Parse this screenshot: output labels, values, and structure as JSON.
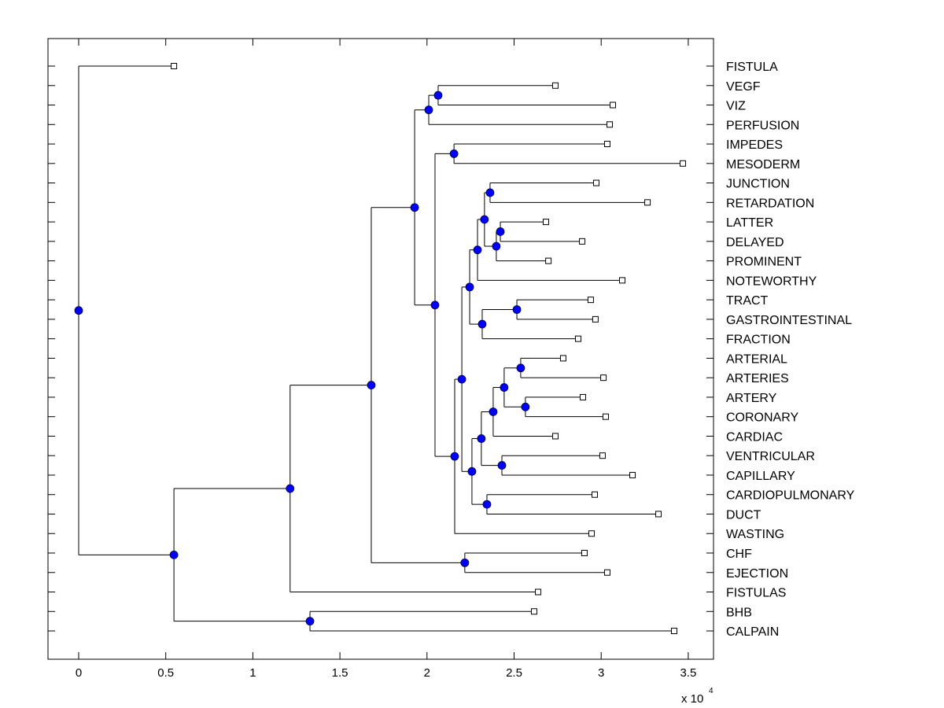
{
  "chart_data": {
    "type": "dendrogram",
    "title": "",
    "xlabel": "",
    "ylabel": "",
    "x_multiplier_label": "x 10",
    "x_multiplier_exponent": "4",
    "xlim": [
      -0.175,
      3.64
    ],
    "xticks": [
      0,
      0.5,
      1,
      1.5,
      2,
      2.5,
      3,
      3.5
    ],
    "xtick_labels": [
      "0",
      "0.5",
      "1",
      "1.5",
      "2",
      "2.5",
      "3",
      "3.5"
    ],
    "grid": false,
    "colors": {
      "node_fill": "#0000ff",
      "line": "#000000",
      "leaf_fill": "#ffffff"
    },
    "leaves": [
      {
        "id": "FISTULA",
        "label": "FISTULA",
        "x": 0.547
      },
      {
        "id": "VEGF",
        "label": "VEGF",
        "x": 2.737
      },
      {
        "id": "VIZ",
        "label": "VIZ",
        "x": 3.067
      },
      {
        "id": "PERFUSION",
        "label": "PERFUSION",
        "x": 3.049
      },
      {
        "id": "IMPEDES",
        "label": "IMPEDES",
        "x": 3.035
      },
      {
        "id": "MESODERM",
        "label": "MESODERM",
        "x": 3.469
      },
      {
        "id": "JUNCTION",
        "label": "JUNCTION",
        "x": 2.972
      },
      {
        "id": "RETARDATION",
        "label": "RETARDATION",
        "x": 3.266
      },
      {
        "id": "LATTER",
        "label": "LATTER",
        "x": 2.683
      },
      {
        "id": "DELAYED",
        "label": "DELAYED",
        "x": 2.891
      },
      {
        "id": "PROMINENT",
        "label": "PROMINENT",
        "x": 2.697
      },
      {
        "id": "NOTEWORTHY",
        "label": "NOTEWORTHY",
        "x": 3.121
      },
      {
        "id": "TRACT",
        "label": "TRACT",
        "x": 2.94
      },
      {
        "id": "GASTROINTESTINAL",
        "label": "GASTROINTESTINAL",
        "x": 2.967
      },
      {
        "id": "FRACTION",
        "label": "FRACTION",
        "x": 2.868
      },
      {
        "id": "ARTERIAL",
        "label": "ARTERIAL",
        "x": 2.782
      },
      {
        "id": "ARTERIES",
        "label": "ARTERIES",
        "x": 3.013
      },
      {
        "id": "ARTERY",
        "label": "ARTERY",
        "x": 2.895
      },
      {
        "id": "CORONARY",
        "label": "CORONARY",
        "x": 3.026
      },
      {
        "id": "CARDIAC",
        "label": "CARDIAC",
        "x": 2.737
      },
      {
        "id": "VENTRICULAR",
        "label": "VENTRICULAR",
        "x": 3.008
      },
      {
        "id": "CAPILLARY",
        "label": "CAPILLARY",
        "x": 3.18
      },
      {
        "id": "CARDIOPULMONARY",
        "label": "CARDIOPULMONARY",
        "x": 2.963
      },
      {
        "id": "DUCT",
        "label": "DUCT",
        "x": 3.329
      },
      {
        "id": "WASTING",
        "label": "WASTING",
        "x": 2.945
      },
      {
        "id": "CHF",
        "label": "CHF",
        "x": 2.904
      },
      {
        "id": "EJECTION",
        "label": "EJECTION",
        "x": 3.035
      },
      {
        "id": "FISTULAS",
        "label": "FISTULAS",
        "x": 2.638
      },
      {
        "id": "BHB",
        "label": "BHB",
        "x": 2.615
      },
      {
        "id": "CALPAIN",
        "label": "CALPAIN",
        "x": 3.419
      }
    ],
    "nodes": [
      {
        "id": "n_root",
        "x": 0.0,
        "children": [
          "FISTULA",
          "n_A"
        ]
      },
      {
        "id": "n_A",
        "x": 0.547,
        "children": [
          "n_B",
          "n_C"
        ]
      },
      {
        "id": "n_C",
        "x": 1.328,
        "children": [
          "BHB",
          "CALPAIN"
        ]
      },
      {
        "id": "n_B",
        "x": 1.214,
        "children": [
          "n_D",
          "FISTULAS"
        ]
      },
      {
        "id": "n_D",
        "x": 1.68,
        "children": [
          "n_E",
          "n_F"
        ]
      },
      {
        "id": "n_F",
        "x": 2.217,
        "children": [
          "CHF",
          "EJECTION"
        ]
      },
      {
        "id": "n_E",
        "x": 1.929,
        "children": [
          "n_G",
          "n_H"
        ]
      },
      {
        "id": "n_G",
        "x": 2.01,
        "children": [
          "n_I",
          "PERFUSION"
        ]
      },
      {
        "id": "n_I",
        "x": 2.064,
        "children": [
          "VEGF",
          "VIZ"
        ]
      },
      {
        "id": "n_H",
        "x": 2.046,
        "children": [
          "n_J",
          "n_K"
        ]
      },
      {
        "id": "n_J",
        "x": 2.155,
        "children": [
          "IMPEDES",
          "MESODERM"
        ]
      },
      {
        "id": "n_K",
        "x": 2.159,
        "children": [
          "n_M",
          "WASTING"
        ]
      },
      {
        "id": "n_M",
        "x": 2.2,
        "children": [
          "n_L",
          "n_N"
        ]
      },
      {
        "id": "n_L",
        "x": 2.245,
        "children": [
          "n_S",
          "n_Q"
        ]
      },
      {
        "id": "n_S",
        "x": 2.29,
        "children": [
          "n_T",
          "NOTEWORTHY"
        ]
      },
      {
        "id": "n_T",
        "x": 2.33,
        "children": [
          "n_U",
          "n_V"
        ]
      },
      {
        "id": "n_U",
        "x": 2.362,
        "children": [
          "JUNCTION",
          "RETARDATION"
        ]
      },
      {
        "id": "n_V",
        "x": 2.398,
        "children": [
          "n_W",
          "PROMINENT"
        ]
      },
      {
        "id": "n_W",
        "x": 2.421,
        "children": [
          "LATTER",
          "DELAYED"
        ]
      },
      {
        "id": "n_Q",
        "x": 2.317,
        "children": [
          "n_R",
          "FRACTION"
        ]
      },
      {
        "id": "n_R",
        "x": 2.516,
        "children": [
          "TRACT",
          "GASTROINTESTINAL"
        ]
      },
      {
        "id": "n_N",
        "x": 2.258,
        "children": [
          "n_X",
          "n_Y"
        ]
      },
      {
        "id": "n_Y",
        "x": 2.344,
        "children": [
          "CARDIOPULMONARY",
          "DUCT"
        ]
      },
      {
        "id": "n_X",
        "x": 2.312,
        "children": [
          "n_Z",
          "n_AA"
        ]
      },
      {
        "id": "n_AA",
        "x": 2.43,
        "children": [
          "VENTRICULAR",
          "CAPILLARY"
        ]
      },
      {
        "id": "n_Z",
        "x": 2.38,
        "children": [
          "n_AB",
          "CARDIAC"
        ]
      },
      {
        "id": "n_AB",
        "x": 2.443,
        "children": [
          "n_AC",
          "n_AD"
        ]
      },
      {
        "id": "n_AC",
        "x": 2.538,
        "children": [
          "ARTERIAL",
          "ARTERIES"
        ]
      },
      {
        "id": "n_AD",
        "x": 2.565,
        "children": [
          "ARTERY",
          "CORONARY"
        ]
      }
    ]
  }
}
